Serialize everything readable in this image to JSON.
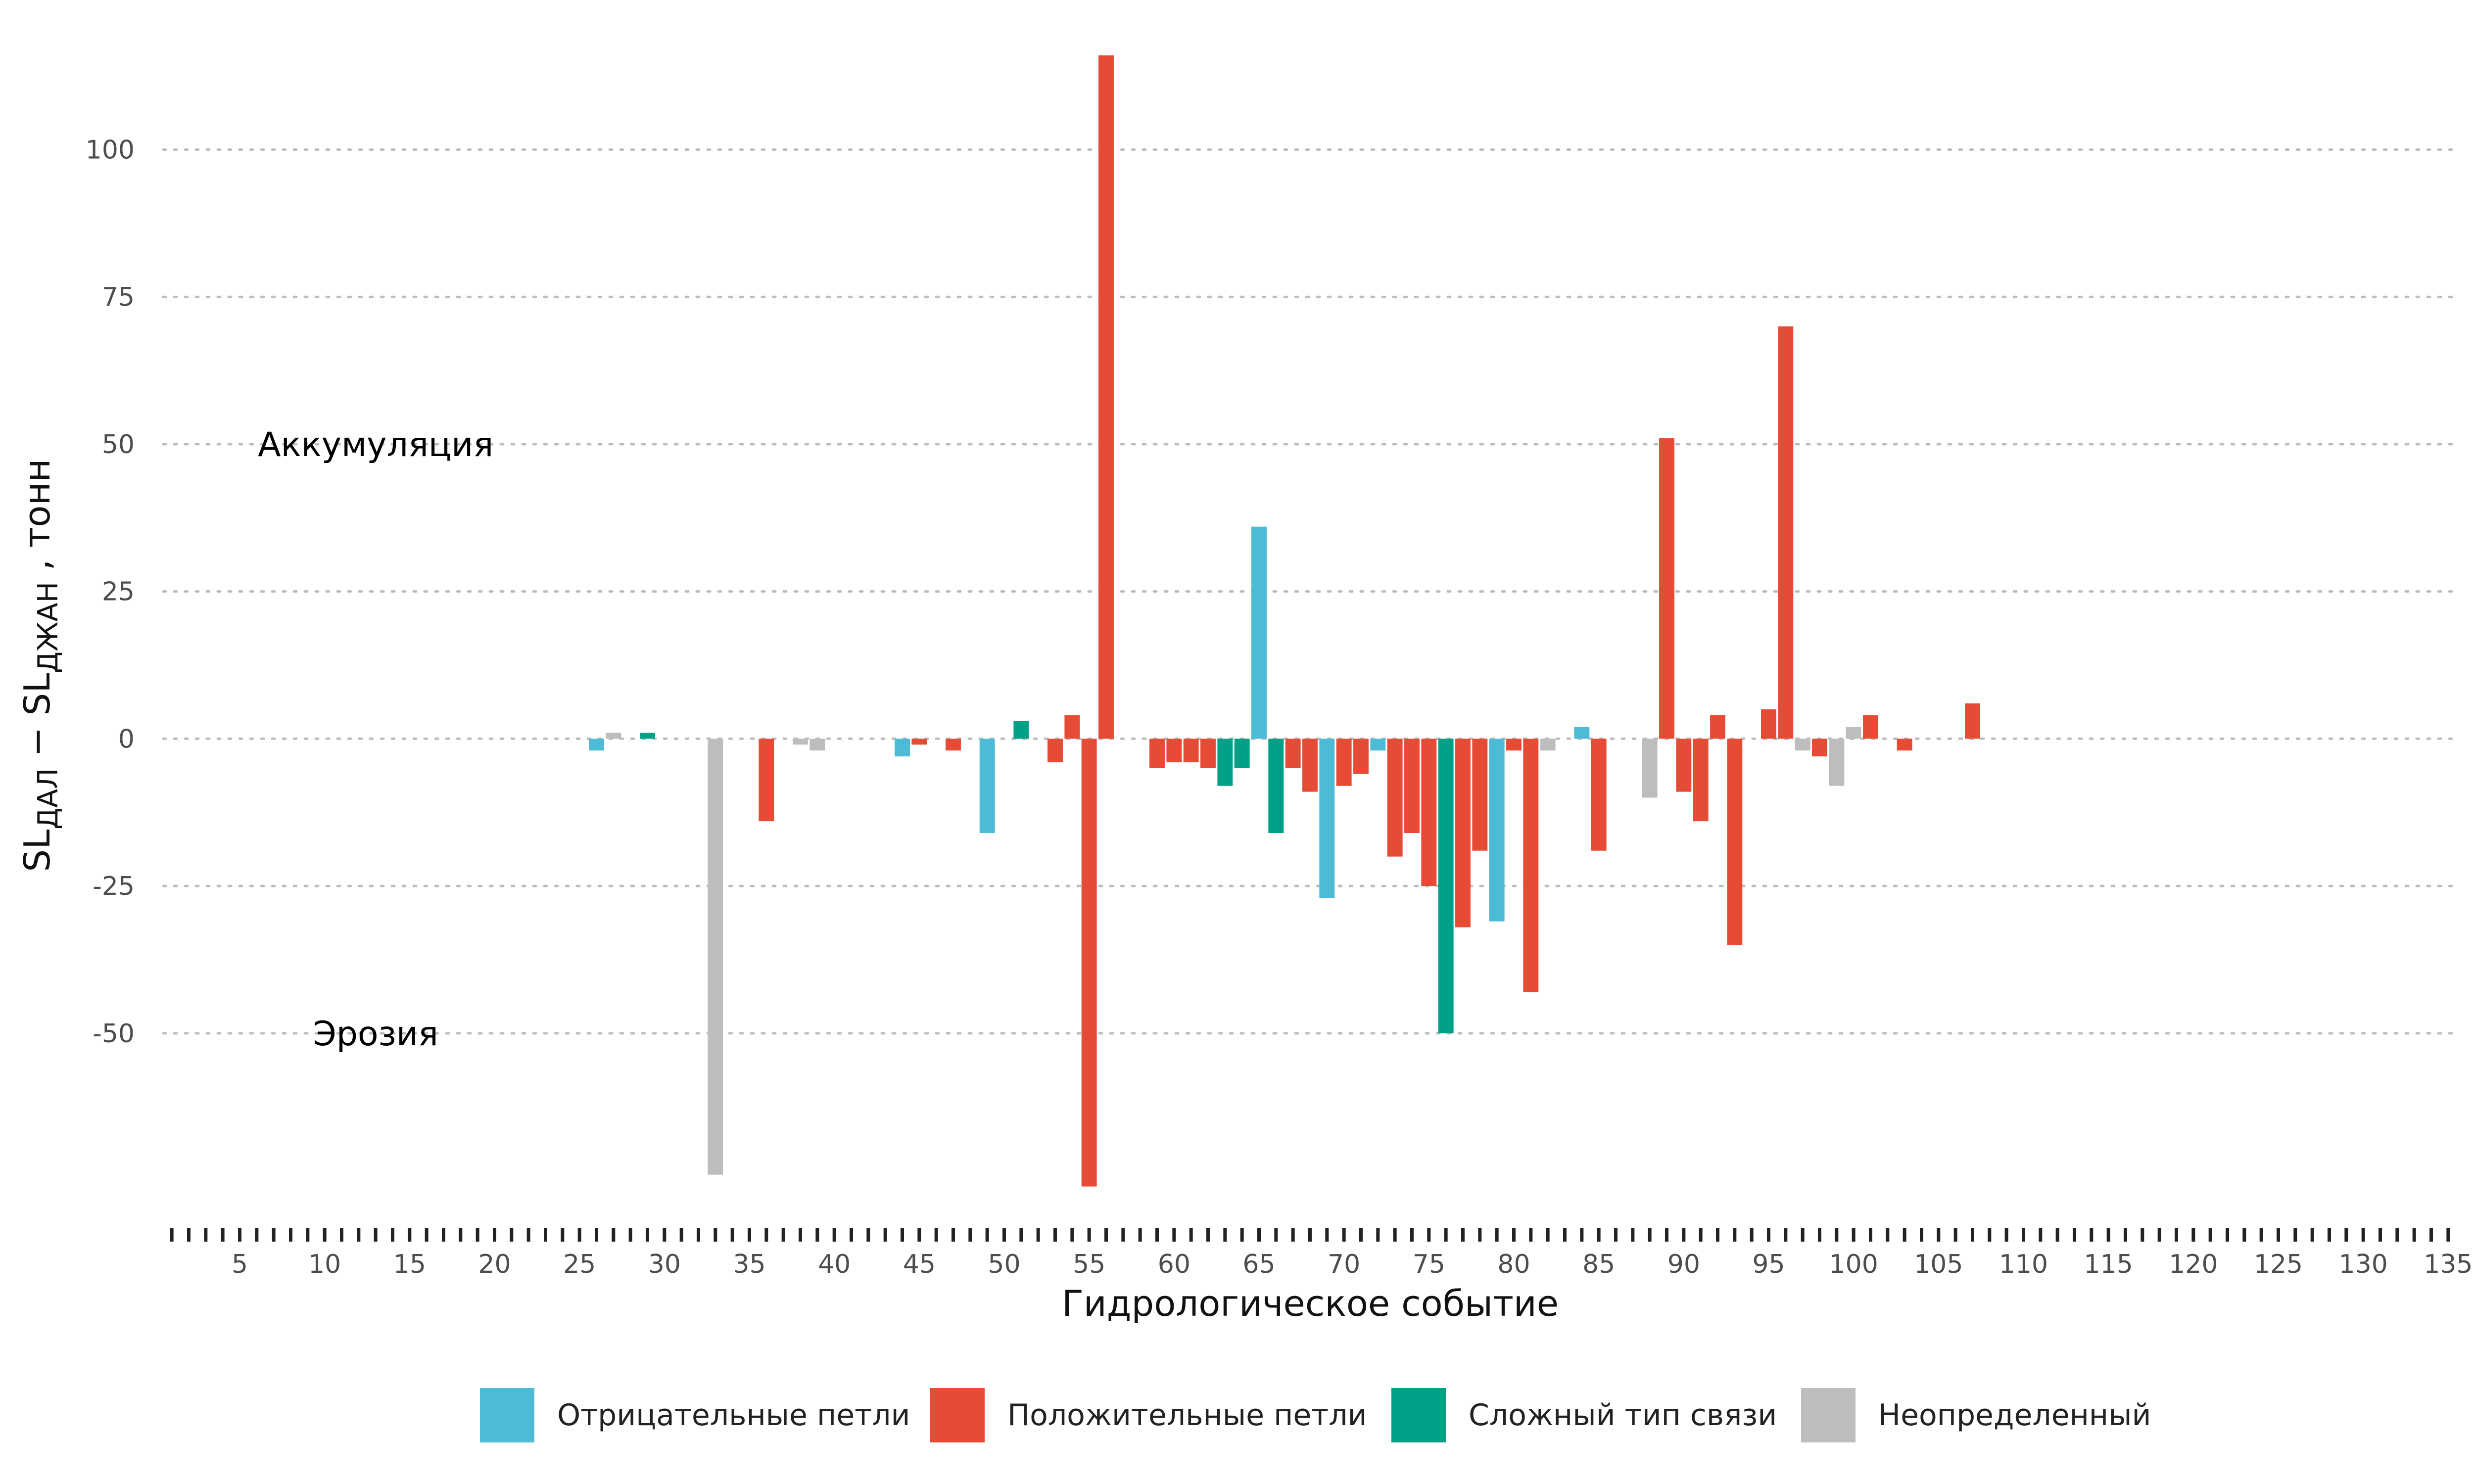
{
  "chart_data": {
    "type": "bar",
    "xlabel": "Гидрологическое событие",
    "ylabel": {
      "prefix": "SL",
      "sub1": "ДАЛ",
      "minus": " − SL",
      "sub2": "ДЖАН",
      "suffix": " , тонн"
    },
    "ylim": [
      -82,
      117
    ],
    "xlim": [
      0.5,
      135.5
    ],
    "y_ticks": [
      100,
      75,
      50,
      25,
      0,
      -25,
      -50
    ],
    "x_ticks": [
      5,
      10,
      15,
      20,
      25,
      30,
      35,
      40,
      45,
      50,
      55,
      60,
      65,
      70,
      75,
      80,
      85,
      90,
      95,
      100,
      105,
      110,
      115,
      120,
      125,
      130,
      135
    ],
    "grid": "horizontal dotted",
    "annotations": [
      {
        "text": "Аккумуляция",
        "x": 13,
        "y": 50
      },
      {
        "text": "Эрозия",
        "x": 13,
        "y": -50
      }
    ],
    "legend": {
      "position": "bottom",
      "entries": [
        {
          "key": "neg",
          "label": "Отрицательные петли",
          "color": "#4DBBD5"
        },
        {
          "key": "pos",
          "label": "Положительные петли",
          "color": "#E64B35"
        },
        {
          "key": "cpx",
          "label": "Сложный тип связи",
          "color": "#00A087"
        },
        {
          "key": "und",
          "label": "Неопределенный",
          "color": "#BDBDBD"
        }
      ]
    },
    "bars": [
      {
        "x": 26,
        "y": -2,
        "type": "neg"
      },
      {
        "x": 27,
        "y": 1,
        "type": "und"
      },
      {
        "x": 29,
        "y": 1,
        "type": "cpx"
      },
      {
        "x": 33,
        "y": -74,
        "type": "und"
      },
      {
        "x": 36,
        "y": -14,
        "type": "pos"
      },
      {
        "x": 38,
        "y": -1,
        "type": "und"
      },
      {
        "x": 39,
        "y": -2,
        "type": "und"
      },
      {
        "x": 44,
        "y": -3,
        "type": "neg"
      },
      {
        "x": 45,
        "y": -1,
        "type": "pos"
      },
      {
        "x": 47,
        "y": -2,
        "type": "pos"
      },
      {
        "x": 49,
        "y": -16,
        "type": "neg"
      },
      {
        "x": 51,
        "y": 3,
        "type": "cpx"
      },
      {
        "x": 53,
        "y": -4,
        "type": "pos"
      },
      {
        "x": 54,
        "y": 4,
        "type": "pos"
      },
      {
        "x": 55,
        "y": -76,
        "type": "pos"
      },
      {
        "x": 56,
        "y": 116,
        "type": "pos"
      },
      {
        "x": 59,
        "y": -5,
        "type": "pos"
      },
      {
        "x": 60,
        "y": -4,
        "type": "pos"
      },
      {
        "x": 61,
        "y": -4,
        "type": "pos"
      },
      {
        "x": 62,
        "y": -5,
        "type": "pos"
      },
      {
        "x": 63,
        "y": -8,
        "type": "cpx"
      },
      {
        "x": 64,
        "y": -5,
        "type": "cpx"
      },
      {
        "x": 65,
        "y": 36,
        "type": "neg"
      },
      {
        "x": 66,
        "y": -16,
        "type": "cpx"
      },
      {
        "x": 67,
        "y": -5,
        "type": "pos"
      },
      {
        "x": 68,
        "y": -9,
        "type": "pos"
      },
      {
        "x": 69,
        "y": -27,
        "type": "neg"
      },
      {
        "x": 70,
        "y": -8,
        "type": "pos"
      },
      {
        "x": 71,
        "y": -6,
        "type": "pos"
      },
      {
        "x": 72,
        "y": -2,
        "type": "neg"
      },
      {
        "x": 73,
        "y": -20,
        "type": "pos"
      },
      {
        "x": 74,
        "y": -16,
        "type": "pos"
      },
      {
        "x": 75,
        "y": -25,
        "type": "pos"
      },
      {
        "x": 76,
        "y": -50,
        "type": "cpx"
      },
      {
        "x": 77,
        "y": -32,
        "type": "pos"
      },
      {
        "x": 78,
        "y": -19,
        "type": "pos"
      },
      {
        "x": 79,
        "y": -31,
        "type": "neg"
      },
      {
        "x": 80,
        "y": -2,
        "type": "pos"
      },
      {
        "x": 81,
        "y": -43,
        "type": "pos"
      },
      {
        "x": 82,
        "y": -2,
        "type": "und"
      },
      {
        "x": 84,
        "y": 2,
        "type": "neg"
      },
      {
        "x": 85,
        "y": -19,
        "type": "pos"
      },
      {
        "x": 88,
        "y": -10,
        "type": "und"
      },
      {
        "x": 89,
        "y": 51,
        "type": "pos"
      },
      {
        "x": 90,
        "y": -9,
        "type": "pos"
      },
      {
        "x": 91,
        "y": -14,
        "type": "pos"
      },
      {
        "x": 92,
        "y": 4,
        "type": "pos"
      },
      {
        "x": 93,
        "y": -35,
        "type": "pos"
      },
      {
        "x": 95,
        "y": 5,
        "type": "pos"
      },
      {
        "x": 96,
        "y": 70,
        "type": "pos"
      },
      {
        "x": 97,
        "y": -2,
        "type": "und"
      },
      {
        "x": 98,
        "y": -3,
        "type": "pos"
      },
      {
        "x": 99,
        "y": -8,
        "type": "und"
      },
      {
        "x": 100,
        "y": 2,
        "type": "und"
      },
      {
        "x": 101,
        "y": 4,
        "type": "pos"
      },
      {
        "x": 103,
        "y": -2,
        "type": "pos"
      },
      {
        "x": 107,
        "y": 6,
        "type": "pos"
      }
    ]
  }
}
